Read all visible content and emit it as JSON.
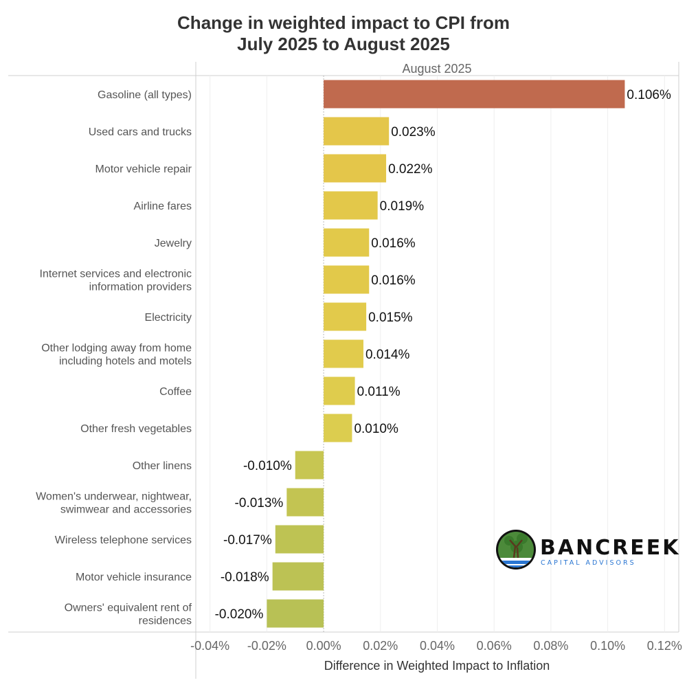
{
  "chart_data": {
    "type": "bar",
    "orientation": "horizontal",
    "title_lines": [
      "Change in weighted impact to CPI from",
      "July 2025 to August 2025"
    ],
    "panel_label": "August 2025",
    "xlabel": "Difference in Weighted Impact to Inflation",
    "ylabel": "",
    "xlim": [
      -0.045,
      0.125
    ],
    "x_ticks": [
      -0.04,
      -0.02,
      0.0,
      0.02,
      0.04,
      0.06,
      0.08,
      0.1,
      0.12
    ],
    "x_tick_labels": [
      "-0.04%",
      "-0.02%",
      "0.00%",
      "0.02%",
      "0.04%",
      "0.06%",
      "0.08%",
      "0.10%",
      "0.12%"
    ],
    "grid": "vertical",
    "categories": [
      [
        "Gasoline (all types)"
      ],
      [
        "Used cars and trucks"
      ],
      [
        "Motor vehicle repair"
      ],
      [
        "Airline fares"
      ],
      [
        "Jewelry"
      ],
      [
        "Internet services and electronic",
        "information providers"
      ],
      [
        "Electricity"
      ],
      [
        "Other lodging away from home",
        "including hotels and motels"
      ],
      [
        "Coffee"
      ],
      [
        "Other fresh vegetables"
      ],
      [
        "Other linens"
      ],
      [
        "Women's underwear, nightwear,",
        "swimwear and accessories"
      ],
      [
        "Wireless telephone services"
      ],
      [
        "Motor vehicle insurance"
      ],
      [
        "Owners' equivalent rent of",
        "residences"
      ]
    ],
    "values": [
      0.106,
      0.023,
      0.022,
      0.019,
      0.016,
      0.016,
      0.015,
      0.014,
      0.011,
      0.01,
      -0.01,
      -0.013,
      -0.017,
      -0.018,
      -0.02
    ],
    "value_labels": [
      "0.106%",
      "0.023%",
      "0.022%",
      "0.019%",
      "0.016%",
      "0.016%",
      "0.015%",
      "0.014%",
      "0.011%",
      "0.010%",
      "-0.010%",
      "-0.013%",
      "-0.017%",
      "-0.018%",
      "-0.020%"
    ],
    "colors": [
      "#c06a4e",
      "#e4c64a",
      "#e4c64a",
      "#e3c84a",
      "#e2c94a",
      "#e2c94a",
      "#e2ca4b",
      "#e1cb4c",
      "#dfcc4d",
      "#dccd4f",
      "#c7c652",
      "#c3c452",
      "#bec353",
      "#bcc254",
      "#b8c155"
    ]
  },
  "logo": {
    "name": "BANCREEK",
    "tagline": "CAPITAL ADVISORS",
    "colors": {
      "green": "#4c8a3a",
      "blue": "#2a76d2",
      "dark": "#111111"
    }
  }
}
